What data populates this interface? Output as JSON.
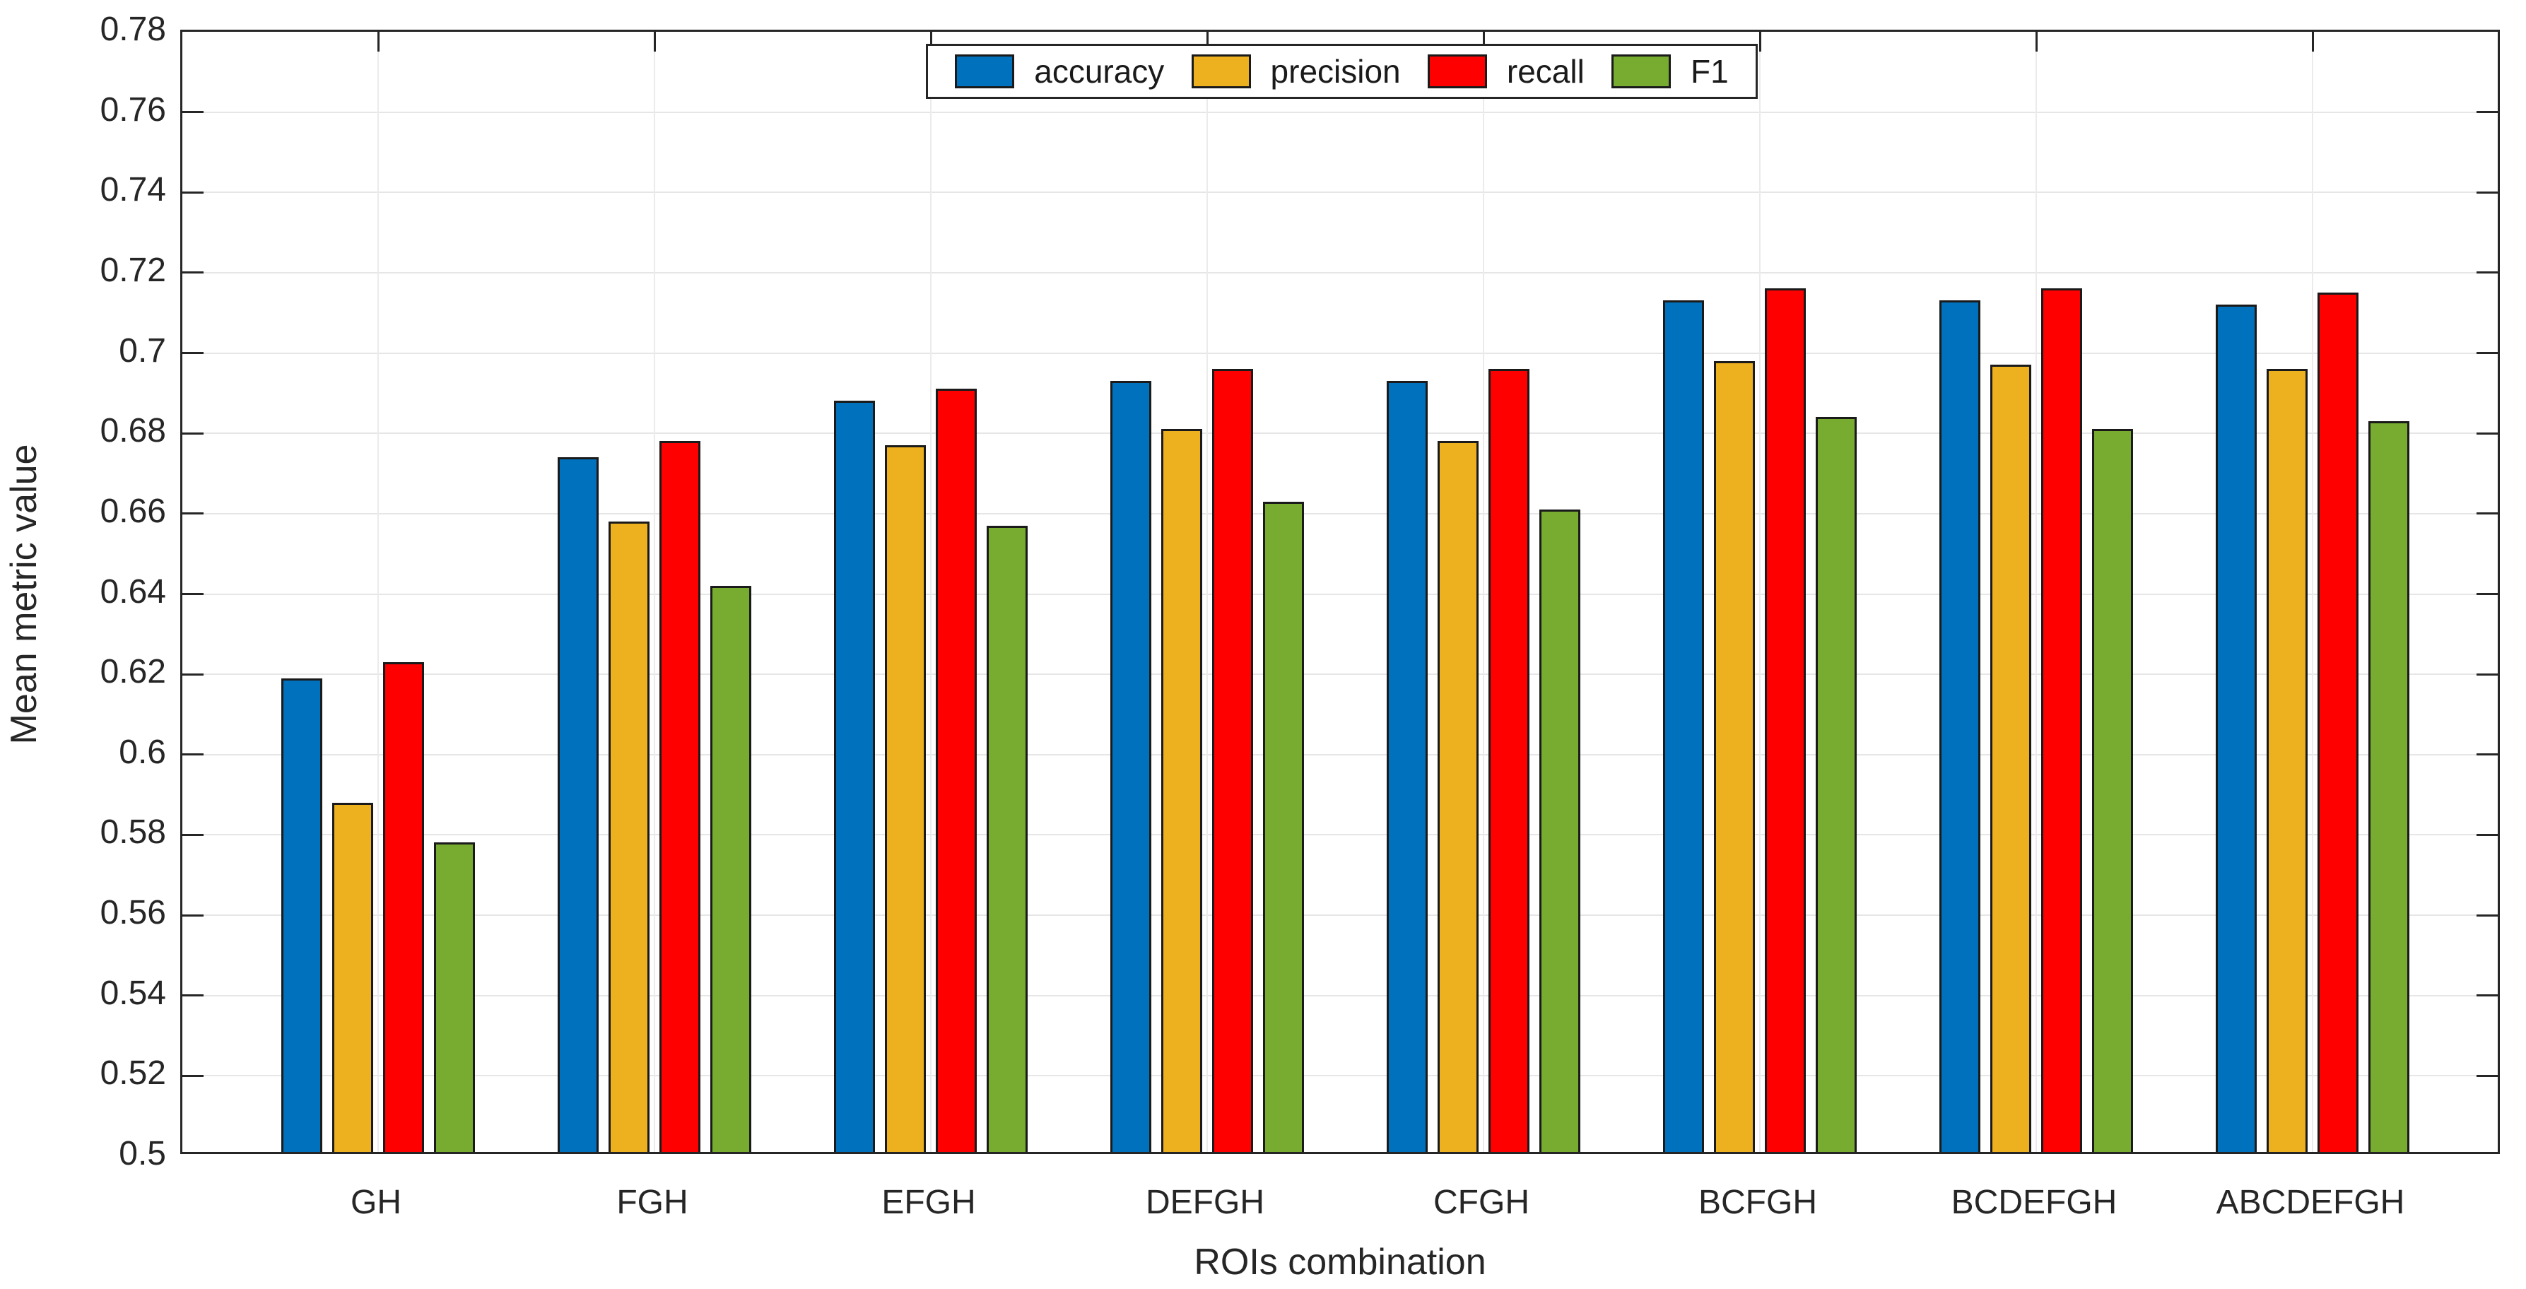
{
  "chart_data": {
    "type": "bar",
    "title": "",
    "xlabel": "ROIs combination",
    "ylabel": "Mean metric value",
    "categories": [
      "GH",
      "FGH",
      "EFGH",
      "DEFGH",
      "CFGH",
      "BCFGH",
      "BCDEFGH",
      "ABCDEFGH"
    ],
    "series": [
      {
        "name": "accuracy",
        "color": "#0072BD",
        "values": [
          0.618,
          0.673,
          0.687,
          0.692,
          0.692,
          0.712,
          0.712,
          0.711
        ]
      },
      {
        "name": "precision",
        "color": "#EDB120",
        "values": [
          0.587,
          0.657,
          0.676,
          0.68,
          0.677,
          0.697,
          0.696,
          0.695
        ]
      },
      {
        "name": "recall",
        "color": "#FF0000",
        "values": [
          0.622,
          0.677,
          0.69,
          0.695,
          0.695,
          0.715,
          0.715,
          0.714
        ]
      },
      {
        "name": "F1",
        "color": "#77AC30",
        "values": [
          0.577,
          0.641,
          0.656,
          0.662,
          0.66,
          0.683,
          0.68,
          0.682
        ]
      }
    ],
    "ylim": [
      0.5,
      0.78
    ],
    "ytick_step": 0.02,
    "ytick_labels": [
      "0.5",
      "0.52",
      "0.54",
      "0.56",
      "0.58",
      "0.6",
      "0.62",
      "0.64",
      "0.66",
      "0.68",
      "0.7",
      "0.72",
      "0.74",
      "0.76",
      "0.78"
    ],
    "grid": true,
    "legend_position": "top-center",
    "legend_entries": [
      "accuracy",
      "precision",
      "recall",
      "F1"
    ],
    "colors": {
      "accuracy": "#0072BD",
      "precision": "#EDB120",
      "recall": "#FF0000",
      "F1": "#77AC30",
      "bar_edge": "#1a1a1a",
      "axis": "#262626",
      "grid": "#e6e6e6",
      "background": "#ffffff"
    }
  }
}
